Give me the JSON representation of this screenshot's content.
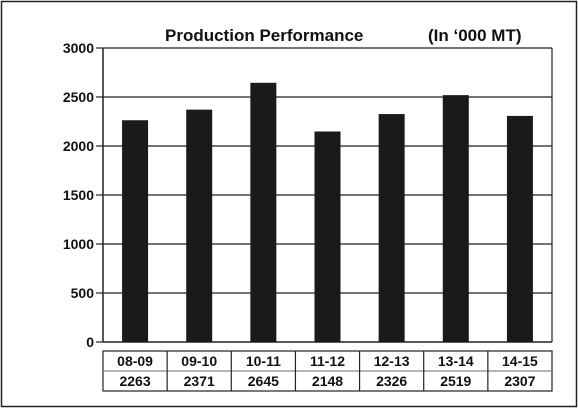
{
  "chart_data": {
    "type": "bar",
    "title": "Production Performance",
    "subtitle": "(In ‘000 MT)",
    "categories": [
      "08-09",
      "09-10",
      "10-11",
      "11-12",
      "12-13",
      "13-14",
      "14-15"
    ],
    "values": [
      2263,
      2371,
      2645,
      2148,
      2326,
      2519,
      2307
    ],
    "yticks": [
      0,
      500,
      1000,
      1500,
      2000,
      2500,
      3000
    ],
    "ylim": [
      0,
      3000
    ],
    "grid": "horizontal",
    "legend": "none",
    "xlabel": "",
    "ylabel": "",
    "bar_color": "#1a1a1a"
  }
}
